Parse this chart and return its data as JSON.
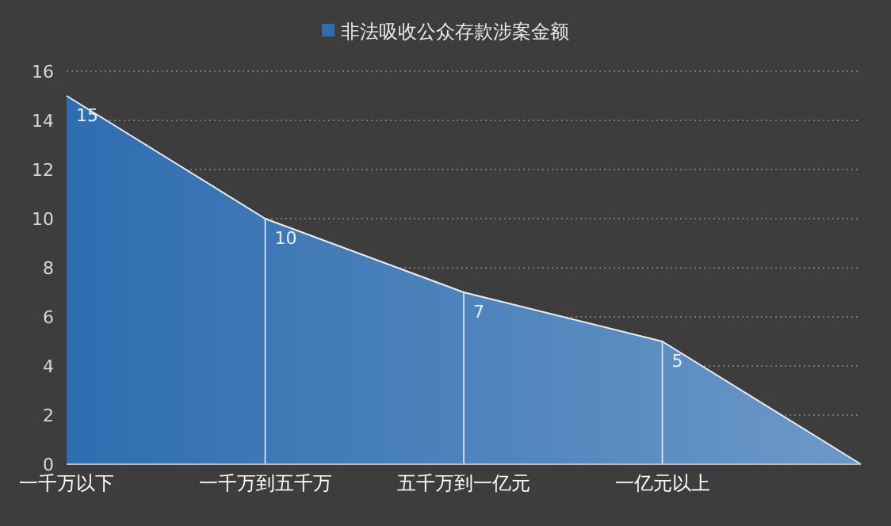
{
  "chart_data": {
    "type": "area",
    "categories": [
      "一千万以下",
      "一千万到五千万",
      "五千万到一亿元",
      "一亿元以上",
      null
    ],
    "series": [
      {
        "name": "非法吸收公众存款涉案金额",
        "color": "#2e6db0",
        "values": [
          15,
          10,
          7,
          5,
          0
        ],
        "value_labels": [
          "15",
          "10",
          "7",
          "5",
          null
        ]
      }
    ],
    "ylim": [
      0,
      16
    ],
    "yticks": [
      0,
      2,
      4,
      6,
      8,
      10,
      12,
      14,
      16
    ],
    "grid": "y",
    "legend": "top"
  }
}
